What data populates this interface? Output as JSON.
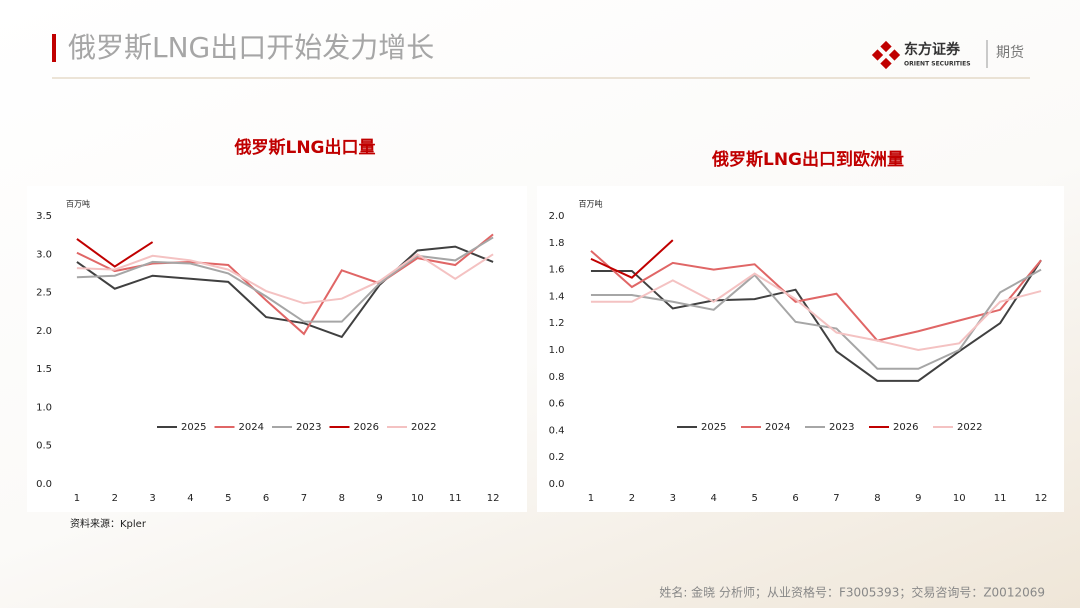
{
  "header": {
    "title": "俄罗斯LNG出口开始发力增长",
    "logo_text": "东方证券",
    "logo_sub": "ORIENT SECURITIES",
    "brand_right": "期货"
  },
  "chart_data": [
    {
      "type": "line",
      "title": "俄罗斯LNG出口量",
      "ylabel": "百万吨",
      "categories": [
        "1",
        "2",
        "3",
        "4",
        "5",
        "6",
        "7",
        "8",
        "9",
        "10",
        "11",
        "12"
      ],
      "ylim": [
        0,
        3.5
      ],
      "yticks": [
        {
          "value": 0,
          "label": "0.0"
        },
        0.5,
        {
          "value": 1,
          "label": "1.0"
        },
        1.5,
        {
          "value": 2,
          "label": "2.0"
        },
        2.5,
        {
          "value": 3,
          "label": "3.0"
        },
        3.5
      ],
      "legend": "bottom",
      "series": [
        {
          "name": "2025",
          "color": "#404040",
          "values": [
            2.9,
            2.55,
            2.72,
            2.68,
            2.64,
            2.18,
            2.1,
            1.92,
            2.6,
            3.05,
            3.1,
            2.9
          ]
        },
        {
          "name": "2024",
          "color": "#e06666",
          "values": [
            3.02,
            2.78,
            2.88,
            2.9,
            2.86,
            2.4,
            1.96,
            2.79,
            2.62,
            2.95,
            2.86,
            3.26
          ]
        },
        {
          "name": "2023",
          "color": "#a6a6a6",
          "values": [
            2.7,
            2.72,
            2.9,
            2.88,
            2.75,
            2.45,
            2.12,
            2.12,
            2.62,
            2.98,
            2.92,
            3.22
          ]
        },
        {
          "name": "2026",
          "color": "#c00000",
          "values": [
            3.2,
            2.84,
            3.16,
            null,
            null,
            null,
            null,
            null,
            null,
            null,
            null,
            null
          ]
        },
        {
          "name": "2022",
          "color": "#f4c2c2",
          "values": [
            2.82,
            2.8,
            2.98,
            2.92,
            2.8,
            2.52,
            2.36,
            2.42,
            2.65,
            3.0,
            2.68,
            3.0
          ]
        }
      ]
    },
    {
      "type": "line",
      "title": "俄罗斯LNG出口到欧洲量",
      "ylabel": "百万吨",
      "categories": [
        "1",
        "2",
        "3",
        "4",
        "5",
        "6",
        "7",
        "8",
        "9",
        "10",
        "11",
        "12"
      ],
      "ylim": [
        0,
        2
      ],
      "yticks": [
        {
          "value": 0,
          "label": "0.0"
        },
        0.2,
        0.4,
        0.6,
        0.8,
        {
          "value": 1,
          "label": "1.0"
        },
        1.2,
        1.4,
        1.6,
        1.8,
        {
          "value": 2,
          "label": "2.0"
        }
      ],
      "legend": "bottom",
      "series": [
        {
          "name": "2025",
          "color": "#404040",
          "values": [
            1.59,
            1.59,
            1.31,
            1.37,
            1.38,
            1.45,
            0.99,
            0.77,
            0.77,
            0.99,
            1.2,
            1.67
          ]
        },
        {
          "name": "2024",
          "color": "#e06666",
          "values": [
            1.74,
            1.47,
            1.65,
            1.6,
            1.64,
            1.36,
            1.42,
            1.07,
            1.14,
            1.22,
            1.3,
            1.67
          ]
        },
        {
          "name": "2023",
          "color": "#a6a6a6",
          "values": [
            1.41,
            1.41,
            1.36,
            1.3,
            1.56,
            1.21,
            1.16,
            0.86,
            0.86,
            1.0,
            1.43,
            1.6
          ]
        },
        {
          "name": "2026",
          "color": "#c00000",
          "values": [
            1.68,
            1.54,
            1.82,
            null,
            null,
            null,
            null,
            null,
            null,
            null,
            null,
            null
          ]
        },
        {
          "name": "2022",
          "color": "#f4c2c2",
          "values": [
            1.36,
            1.36,
            1.52,
            1.36,
            1.57,
            1.38,
            1.13,
            1.07,
            1.0,
            1.05,
            1.36,
            1.44
          ]
        }
      ]
    }
  ],
  "source": "资料来源：Kpler",
  "footer": "姓名: 金晓 分析师；从业资格号：F3005393；交易咨询号：Z0012069"
}
